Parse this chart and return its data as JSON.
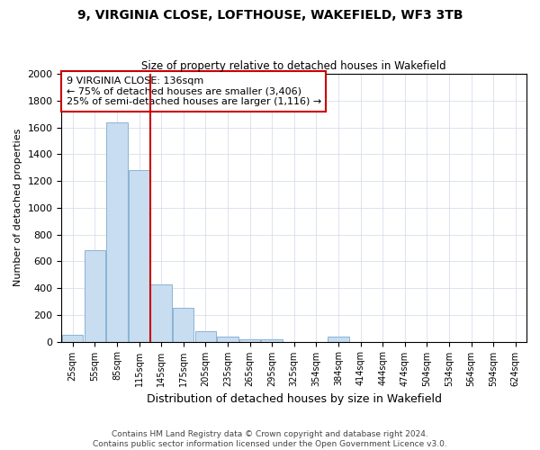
{
  "title": "9, VIRGINIA CLOSE, LOFTHOUSE, WAKEFIELD, WF3 3TB",
  "subtitle": "Size of property relative to detached houses in Wakefield",
  "xlabel": "Distribution of detached houses by size in Wakefield",
  "ylabel": "Number of detached properties",
  "categories": [
    "25sqm",
    "55sqm",
    "85sqm",
    "115sqm",
    "145sqm",
    "175sqm",
    "205sqm",
    "235sqm",
    "265sqm",
    "295sqm",
    "325sqm",
    "354sqm",
    "384sqm",
    "414sqm",
    "444sqm",
    "474sqm",
    "504sqm",
    "534sqm",
    "564sqm",
    "594sqm",
    "624sqm"
  ],
  "values": [
    50,
    680,
    1640,
    1280,
    430,
    250,
    80,
    40,
    20,
    15,
    0,
    0,
    40,
    0,
    0,
    0,
    0,
    0,
    0,
    0,
    0
  ],
  "bar_color": "#c8ddf0",
  "bar_edge_color": "#8ab4d4",
  "vline_color": "#cc0000",
  "vline_x": 3.5,
  "annotation_text": "9 VIRGINIA CLOSE: 136sqm\n← 75% of detached houses are smaller (3,406)\n25% of semi-detached houses are larger (1,116) →",
  "annotation_box_color": "#ffffff",
  "annotation_box_edge_color": "#cc0000",
  "ylim": [
    0,
    2000
  ],
  "yticks": [
    0,
    200,
    400,
    600,
    800,
    1000,
    1200,
    1400,
    1600,
    1800,
    2000
  ],
  "footer_line1": "Contains HM Land Registry data © Crown copyright and database right 2024.",
  "footer_line2": "Contains public sector information licensed under the Open Government Licence v3.0.",
  "bg_color": "#ffffff",
  "grid_color": "#d0d8e8"
}
